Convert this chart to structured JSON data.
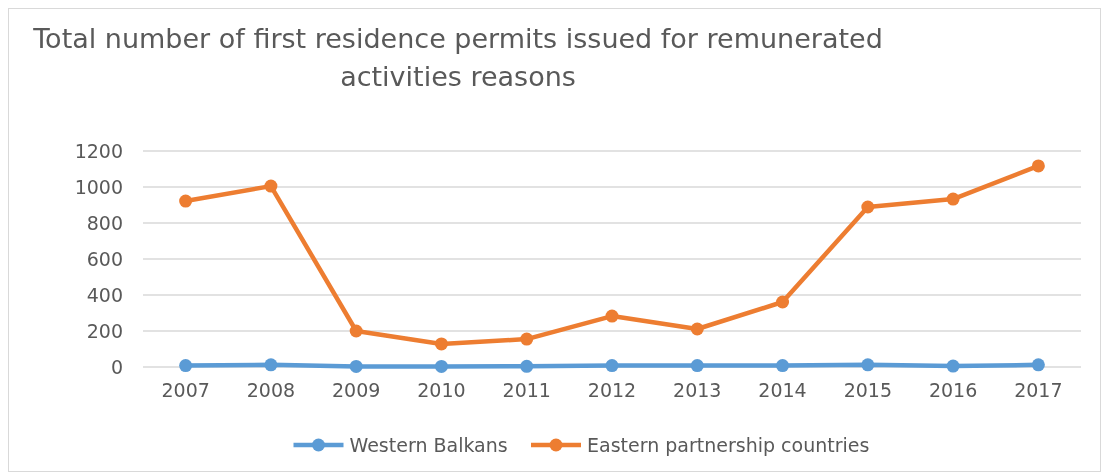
{
  "chart_data": {
    "type": "line",
    "title": "Total number of first residence permits issued for remunerated activities reasons",
    "categories": [
      "2007",
      "2008",
      "2009",
      "2010",
      "2011",
      "2012",
      "2013",
      "2014",
      "2015",
      "2016",
      "2017"
    ],
    "series": [
      {
        "name": "Western Balkans",
        "color": "#5b9bd5",
        "values": [
          8,
          12,
          3,
          3,
          4,
          8,
          8,
          8,
          12,
          5,
          12
        ]
      },
      {
        "name": "Eastern partnership countries",
        "color": "#ed7d31",
        "values": [
          922,
          1005,
          200,
          128,
          155,
          283,
          211,
          361,
          889,
          933,
          1117
        ]
      }
    ],
    "ylim": [
      0,
      1200
    ],
    "yticks": [
      0,
      200,
      400,
      600,
      800,
      1000,
      1200
    ],
    "grid": "y",
    "legend": "bottom",
    "marker": "circle",
    "line_style": "solid"
  }
}
